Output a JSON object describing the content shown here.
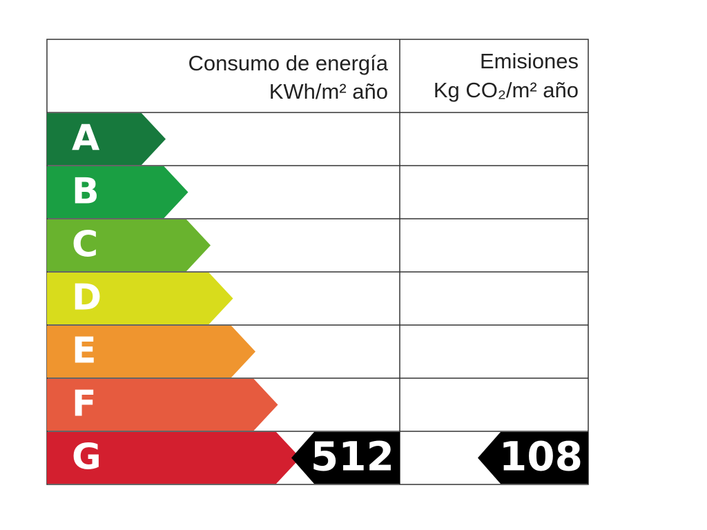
{
  "header": {
    "energy_title": "Consumo de energía",
    "energy_unit": "KWh/m² año",
    "emissions_title": "Emisiones",
    "emissions_unit": "Kg CO₂/m² año"
  },
  "rows": [
    {
      "label": "A",
      "color": "#17793d"
    },
    {
      "label": "B",
      "color": "#1a9f43"
    },
    {
      "label": "C",
      "color": "#69b32e"
    },
    {
      "label": "D",
      "color": "#d8dc1c"
    },
    {
      "label": "E",
      "color": "#ef952f"
    },
    {
      "label": "F",
      "color": "#e65b3f"
    },
    {
      "label": "G",
      "color": "#d31f2f",
      "energy": 512,
      "emissions": 108
    }
  ]
}
